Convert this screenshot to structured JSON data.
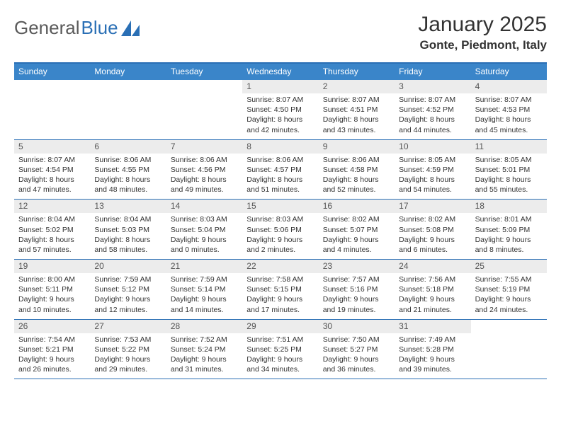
{
  "logo": {
    "text1": "General",
    "text2": "Blue"
  },
  "title": "January 2025",
  "location": "Gonte, Piedmont, Italy",
  "colors": {
    "header_bar": "#3a85c9",
    "border": "#2a6fb5",
    "day_num_bg": "#ececec",
    "text": "#333333",
    "logo_gray": "#5a5a5a",
    "logo_blue": "#2a6fb5",
    "background": "#ffffff"
  },
  "typography": {
    "title_fontsize": 30,
    "location_fontsize": 17,
    "dow_fontsize": 12,
    "daynum_fontsize": 12,
    "body_fontsize": 10.5
  },
  "dow": [
    "Sunday",
    "Monday",
    "Tuesday",
    "Wednesday",
    "Thursday",
    "Friday",
    "Saturday"
  ],
  "weeks": [
    [
      {
        "n": "",
        "sr": "",
        "ss": "",
        "dl1": "",
        "dl2": ""
      },
      {
        "n": "",
        "sr": "",
        "ss": "",
        "dl1": "",
        "dl2": ""
      },
      {
        "n": "",
        "sr": "",
        "ss": "",
        "dl1": "",
        "dl2": ""
      },
      {
        "n": "1",
        "sr": "Sunrise: 8:07 AM",
        "ss": "Sunset: 4:50 PM",
        "dl1": "Daylight: 8 hours",
        "dl2": "and 42 minutes."
      },
      {
        "n": "2",
        "sr": "Sunrise: 8:07 AM",
        "ss": "Sunset: 4:51 PM",
        "dl1": "Daylight: 8 hours",
        "dl2": "and 43 minutes."
      },
      {
        "n": "3",
        "sr": "Sunrise: 8:07 AM",
        "ss": "Sunset: 4:52 PM",
        "dl1": "Daylight: 8 hours",
        "dl2": "and 44 minutes."
      },
      {
        "n": "4",
        "sr": "Sunrise: 8:07 AM",
        "ss": "Sunset: 4:53 PM",
        "dl1": "Daylight: 8 hours",
        "dl2": "and 45 minutes."
      }
    ],
    [
      {
        "n": "5",
        "sr": "Sunrise: 8:07 AM",
        "ss": "Sunset: 4:54 PM",
        "dl1": "Daylight: 8 hours",
        "dl2": "and 47 minutes."
      },
      {
        "n": "6",
        "sr": "Sunrise: 8:06 AM",
        "ss": "Sunset: 4:55 PM",
        "dl1": "Daylight: 8 hours",
        "dl2": "and 48 minutes."
      },
      {
        "n": "7",
        "sr": "Sunrise: 8:06 AM",
        "ss": "Sunset: 4:56 PM",
        "dl1": "Daylight: 8 hours",
        "dl2": "and 49 minutes."
      },
      {
        "n": "8",
        "sr": "Sunrise: 8:06 AM",
        "ss": "Sunset: 4:57 PM",
        "dl1": "Daylight: 8 hours",
        "dl2": "and 51 minutes."
      },
      {
        "n": "9",
        "sr": "Sunrise: 8:06 AM",
        "ss": "Sunset: 4:58 PM",
        "dl1": "Daylight: 8 hours",
        "dl2": "and 52 minutes."
      },
      {
        "n": "10",
        "sr": "Sunrise: 8:05 AM",
        "ss": "Sunset: 4:59 PM",
        "dl1": "Daylight: 8 hours",
        "dl2": "and 54 minutes."
      },
      {
        "n": "11",
        "sr": "Sunrise: 8:05 AM",
        "ss": "Sunset: 5:01 PM",
        "dl1": "Daylight: 8 hours",
        "dl2": "and 55 minutes."
      }
    ],
    [
      {
        "n": "12",
        "sr": "Sunrise: 8:04 AM",
        "ss": "Sunset: 5:02 PM",
        "dl1": "Daylight: 8 hours",
        "dl2": "and 57 minutes."
      },
      {
        "n": "13",
        "sr": "Sunrise: 8:04 AM",
        "ss": "Sunset: 5:03 PM",
        "dl1": "Daylight: 8 hours",
        "dl2": "and 58 minutes."
      },
      {
        "n": "14",
        "sr": "Sunrise: 8:03 AM",
        "ss": "Sunset: 5:04 PM",
        "dl1": "Daylight: 9 hours",
        "dl2": "and 0 minutes."
      },
      {
        "n": "15",
        "sr": "Sunrise: 8:03 AM",
        "ss": "Sunset: 5:06 PM",
        "dl1": "Daylight: 9 hours",
        "dl2": "and 2 minutes."
      },
      {
        "n": "16",
        "sr": "Sunrise: 8:02 AM",
        "ss": "Sunset: 5:07 PM",
        "dl1": "Daylight: 9 hours",
        "dl2": "and 4 minutes."
      },
      {
        "n": "17",
        "sr": "Sunrise: 8:02 AM",
        "ss": "Sunset: 5:08 PM",
        "dl1": "Daylight: 9 hours",
        "dl2": "and 6 minutes."
      },
      {
        "n": "18",
        "sr": "Sunrise: 8:01 AM",
        "ss": "Sunset: 5:09 PM",
        "dl1": "Daylight: 9 hours",
        "dl2": "and 8 minutes."
      }
    ],
    [
      {
        "n": "19",
        "sr": "Sunrise: 8:00 AM",
        "ss": "Sunset: 5:11 PM",
        "dl1": "Daylight: 9 hours",
        "dl2": "and 10 minutes."
      },
      {
        "n": "20",
        "sr": "Sunrise: 7:59 AM",
        "ss": "Sunset: 5:12 PM",
        "dl1": "Daylight: 9 hours",
        "dl2": "and 12 minutes."
      },
      {
        "n": "21",
        "sr": "Sunrise: 7:59 AM",
        "ss": "Sunset: 5:14 PM",
        "dl1": "Daylight: 9 hours",
        "dl2": "and 14 minutes."
      },
      {
        "n": "22",
        "sr": "Sunrise: 7:58 AM",
        "ss": "Sunset: 5:15 PM",
        "dl1": "Daylight: 9 hours",
        "dl2": "and 17 minutes."
      },
      {
        "n": "23",
        "sr": "Sunrise: 7:57 AM",
        "ss": "Sunset: 5:16 PM",
        "dl1": "Daylight: 9 hours",
        "dl2": "and 19 minutes."
      },
      {
        "n": "24",
        "sr": "Sunrise: 7:56 AM",
        "ss": "Sunset: 5:18 PM",
        "dl1": "Daylight: 9 hours",
        "dl2": "and 21 minutes."
      },
      {
        "n": "25",
        "sr": "Sunrise: 7:55 AM",
        "ss": "Sunset: 5:19 PM",
        "dl1": "Daylight: 9 hours",
        "dl2": "and 24 minutes."
      }
    ],
    [
      {
        "n": "26",
        "sr": "Sunrise: 7:54 AM",
        "ss": "Sunset: 5:21 PM",
        "dl1": "Daylight: 9 hours",
        "dl2": "and 26 minutes."
      },
      {
        "n": "27",
        "sr": "Sunrise: 7:53 AM",
        "ss": "Sunset: 5:22 PM",
        "dl1": "Daylight: 9 hours",
        "dl2": "and 29 minutes."
      },
      {
        "n": "28",
        "sr": "Sunrise: 7:52 AM",
        "ss": "Sunset: 5:24 PM",
        "dl1": "Daylight: 9 hours",
        "dl2": "and 31 minutes."
      },
      {
        "n": "29",
        "sr": "Sunrise: 7:51 AM",
        "ss": "Sunset: 5:25 PM",
        "dl1": "Daylight: 9 hours",
        "dl2": "and 34 minutes."
      },
      {
        "n": "30",
        "sr": "Sunrise: 7:50 AM",
        "ss": "Sunset: 5:27 PM",
        "dl1": "Daylight: 9 hours",
        "dl2": "and 36 minutes."
      },
      {
        "n": "31",
        "sr": "Sunrise: 7:49 AM",
        "ss": "Sunset: 5:28 PM",
        "dl1": "Daylight: 9 hours",
        "dl2": "and 39 minutes."
      },
      {
        "n": "",
        "sr": "",
        "ss": "",
        "dl1": "",
        "dl2": ""
      }
    ]
  ]
}
